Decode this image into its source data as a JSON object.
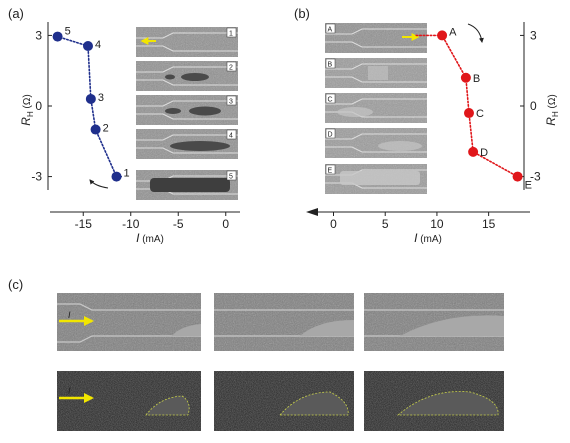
{
  "panels": {
    "a": {
      "label": "(a)"
    },
    "b": {
      "label": "(b)"
    },
    "c": {
      "label": "(c)"
    }
  },
  "colors": {
    "panel_a": "#1f2f8c",
    "panel_b": "#e0161a",
    "current_arrow": "#f2e600",
    "domain_outline": "#c8d04a"
  },
  "chart_data": [
    {
      "type": "scatter",
      "panel": "(a)",
      "xlabel_var": "I",
      "xlabel_unit": "(mA)",
      "ylabel_var": "R",
      "ylabel_sub": "H",
      "ylabel_unit": "(Ω)",
      "xlim": [
        -18.5,
        1.5
      ],
      "ylim": [
        -3.4,
        3.4
      ],
      "xticks": [
        -15,
        -10,
        -5,
        0
      ],
      "xtick_labels": [
        "-15",
        "-10",
        "-5",
        "0"
      ],
      "yticks": [
        3,
        0,
        -3
      ],
      "ytick_labels": [
        "3",
        "0",
        "-3"
      ],
      "points": [
        {
          "x": -11.5,
          "y": -3.0,
          "label": "1"
        },
        {
          "x": -13.7,
          "y": -1.0,
          "label": "2"
        },
        {
          "x": -14.2,
          "y": 0.3,
          "label": "3"
        },
        {
          "x": -14.5,
          "y": 2.55,
          "label": "4"
        },
        {
          "x": -17.7,
          "y": 2.95,
          "label": "5"
        }
      ],
      "sweep_start": {
        "x": -11.0,
        "y": -3.0
      },
      "inset_labels": [
        "1",
        "2",
        "3",
        "4",
        "5"
      ]
    },
    {
      "type": "scatter",
      "panel": "(b)",
      "xlabel_var": "I",
      "xlabel_unit": "(mA)",
      "ylabel_var": "R",
      "ylabel_sub": "H",
      "ylabel_unit": "(Ω)",
      "xlim": [
        -1.5,
        19
      ],
      "ylim": [
        -3.4,
        3.4
      ],
      "xticks": [
        0,
        5,
        10,
        15
      ],
      "xtick_labels": [
        "0",
        "5",
        "10",
        "15"
      ],
      "yticks": [
        3,
        0,
        -3
      ],
      "ytick_labels": [
        "3",
        "0",
        "-3"
      ],
      "points": [
        {
          "x": 10.5,
          "y": 3.0,
          "label": "A"
        },
        {
          "x": 12.8,
          "y": 1.2,
          "label": "B"
        },
        {
          "x": 13.1,
          "y": -0.3,
          "label": "C"
        },
        {
          "x": 13.5,
          "y": -1.95,
          "label": "D"
        },
        {
          "x": 17.8,
          "y": -3.0,
          "label": "E"
        }
      ],
      "sweep_start": {
        "x": 8.0,
        "y": 3.0
      },
      "inset_labels": [
        "A",
        "B",
        "C",
        "D",
        "E"
      ]
    }
  ],
  "panel_c": {
    "current_label": "I",
    "frame_count": 3
  }
}
